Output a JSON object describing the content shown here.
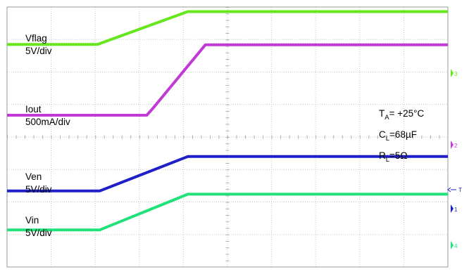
{
  "chart_data": {
    "type": "line",
    "title": "",
    "xlabel": "",
    "ylabel": "",
    "grid": true,
    "divisions": {
      "x": 10,
      "y": 8
    },
    "xlim": [
      0,
      10
    ],
    "ylim": [
      0,
      8
    ],
    "series": [
      {
        "name": "Vflag",
        "scale": "5V/div",
        "color": "#66e61c",
        "marker": "3",
        "x": [
          0,
          2.05,
          4.1,
          10
        ],
        "y": [
          6.85,
          6.85,
          7.86,
          7.86
        ]
      },
      {
        "name": "Iout",
        "scale": "500mA/div",
        "color": "#c23ad6",
        "marker": "2",
        "x": [
          0,
          3.17,
          3.3,
          4.5,
          10
        ],
        "y": [
          4.67,
          4.67,
          4.87,
          6.84,
          6.84
        ]
      },
      {
        "name": "Ven",
        "scale": "5V/div",
        "color": "#1f1fc8",
        "marker": "1",
        "x": [
          0,
          2.1,
          4.1,
          10
        ],
        "y": [
          2.34,
          2.34,
          3.4,
          3.4
        ]
      },
      {
        "name": "Vin",
        "scale": "5V/div",
        "color": "#21e27a",
        "marker": "4",
        "x": [
          0,
          2.1,
          4.1,
          10
        ],
        "y": [
          1.14,
          1.14,
          2.24,
          2.24
        ]
      }
    ],
    "annotations": {
      "ta_prefix": "T",
      "ta_sub": "A",
      "ta_value": "= +25°C",
      "cl_prefix": "C",
      "cl_sub": "L",
      "cl_value": "=68µF",
      "rl_prefix": "R",
      "rl_sub": "L",
      "rl_value": "=5Ω"
    },
    "trigger_marker": "T"
  }
}
